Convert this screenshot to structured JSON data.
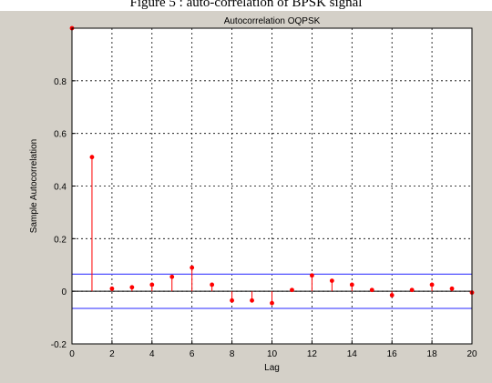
{
  "caption": "Figure 5 : auto-correlation of BPSK signal",
  "chart_data": {
    "type": "stem",
    "title": "Autocorrelation OQPSK",
    "xlabel": "Lag",
    "ylabel": "Sample Autocorrelation",
    "xlim": [
      0,
      20
    ],
    "ylim": [
      -0.2,
      1.0
    ],
    "xticks": [
      0,
      2,
      4,
      6,
      8,
      10,
      12,
      14,
      16,
      18,
      20
    ],
    "yticks": [
      -0.2,
      0,
      0.2,
      0.4,
      0.6,
      0.8
    ],
    "ytick_labels": [
      "-0.2",
      "0",
      "0.2",
      "0.4",
      "0.6",
      "0.8"
    ],
    "grid": true,
    "x": [
      0,
      1,
      2,
      3,
      4,
      5,
      6,
      7,
      8,
      9,
      10,
      11,
      12,
      13,
      14,
      15,
      16,
      17,
      18,
      19,
      20
    ],
    "values": [
      1.0,
      0.51,
      0.01,
      0.015,
      0.025,
      0.055,
      0.09,
      0.025,
      -0.035,
      -0.035,
      -0.045,
      0.005,
      0.06,
      0.04,
      0.025,
      0.005,
      -0.015,
      0.005,
      0.025,
      0.01,
      -0.005
    ],
    "confidence_bounds": [
      0.065,
      -0.065
    ],
    "colors": {
      "stem": "#ff0000",
      "bound": "#5050ff",
      "grid": "#000000",
      "figure_bg": "#d4d0c8"
    }
  }
}
